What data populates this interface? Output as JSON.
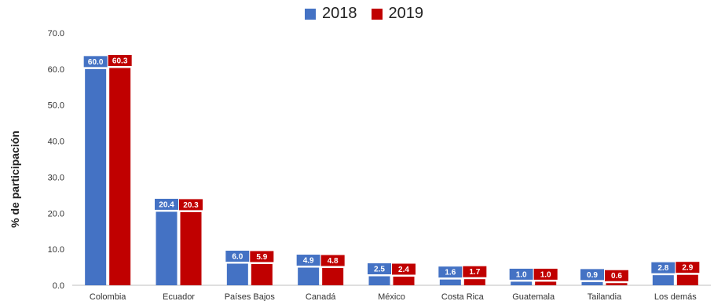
{
  "chart_data": {
    "type": "bar",
    "title": "",
    "xlabel": "",
    "ylabel": "% de participación",
    "ylim": [
      0,
      70
    ],
    "yticks": [
      "0.0",
      "10.0",
      "20.0",
      "30.0",
      "40.0",
      "50.0",
      "60.0",
      "70.0"
    ],
    "grid": false,
    "legend_position": "top-center",
    "categories": [
      "Colombia",
      "Ecuador",
      "Países Bajos",
      "Canadá",
      "México",
      "Costa Rica",
      "Guatemala",
      "Tailandia",
      "Los demás"
    ],
    "series": [
      {
        "name": "2018",
        "color": "#4472C4",
        "values": [
          60.0,
          20.4,
          6.0,
          4.9,
          2.5,
          1.6,
          1.0,
          0.9,
          2.8
        ],
        "labels": [
          "60.0",
          "20.4",
          "6.0",
          "4.9",
          "2.5",
          "1.6",
          "1.0",
          "0.9",
          "2.8"
        ]
      },
      {
        "name": "2019",
        "color": "#C00000",
        "values": [
          60.3,
          20.3,
          5.9,
          4.8,
          2.4,
          1.7,
          1.0,
          0.6,
          2.9
        ],
        "labels": [
          "60.3",
          "20.3",
          "5.9",
          "4.8",
          "2.4",
          "1.7",
          "1.0",
          "0.6",
          "2.9"
        ]
      }
    ]
  }
}
